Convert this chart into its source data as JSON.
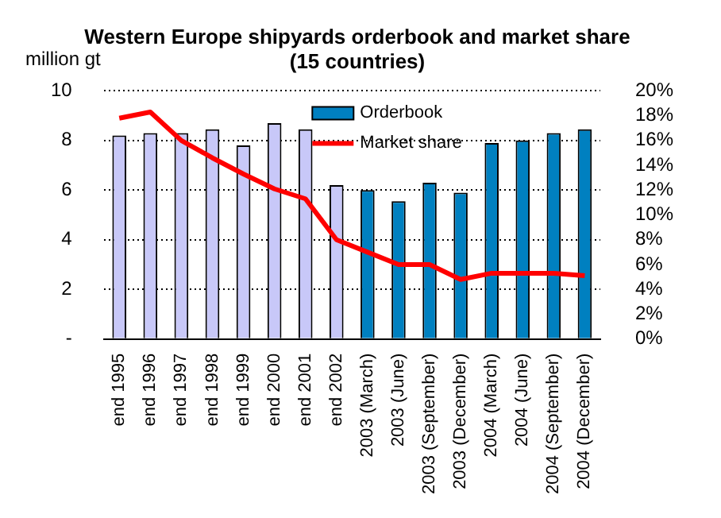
{
  "chart_data": {
    "type": "bar",
    "title": "Western Europe shipyards orderbook and market share",
    "subtitle": "(15 countries)",
    "ylabel": "million gt",
    "categories": [
      "end 1995",
      "end 1996",
      "end 1997",
      "end 1998",
      "end 1999",
      "end 2000",
      "end 2001",
      "end 2002",
      "2003 (March)",
      "2003 (June)",
      "2003 (September)",
      "2003 (December)",
      "2004 (March)",
      "2004 (June)",
      "2004 (September)",
      "2004 (December)"
    ],
    "series": [
      {
        "name": "Orderbook",
        "color": "#0080c0",
        "colors": [
          "#c8c8f8",
          "#c8c8f8",
          "#c8c8f8",
          "#c8c8f8",
          "#c8c8f8",
          "#c8c8f8",
          "#c8c8f8",
          "#c8c8f8",
          "#0080c0",
          "#0080c0",
          "#0080c0",
          "#0080c0",
          "#0080c0",
          "#0080c0",
          "#0080c0",
          "#0080c0"
        ],
        "values": [
          8.2,
          8.3,
          8.3,
          8.45,
          7.8,
          8.7,
          8.45,
          6.2,
          6.0,
          5.55,
          6.3,
          5.9,
          7.9,
          8.0,
          8.3,
          8.45
        ]
      },
      {
        "name": "Market share",
        "type": "line",
        "axis": "y2",
        "color": "#ff0000",
        "marker": "none",
        "values": [
          17.8,
          18.3,
          16.0,
          14.6,
          13.3,
          12.1,
          11.3,
          8.0,
          7.0,
          6.0,
          6.0,
          4.8,
          5.3,
          5.3,
          5.3,
          5.1
        ]
      }
    ],
    "ylim": [
      0,
      10
    ],
    "yticks": [
      {
        "value": 0,
        "label": "-"
      },
      2,
      4,
      6,
      8,
      10
    ],
    "y2lim": [
      0,
      20
    ],
    "y2ticks": [
      {
        "value": 0,
        "label": "0%"
      },
      {
        "value": 2,
        "label": "2%"
      },
      {
        "value": 4,
        "label": "4%"
      },
      {
        "value": 6,
        "label": "6%"
      },
      {
        "value": 8,
        "label": "8%"
      },
      {
        "value": 10,
        "label": "10%"
      },
      {
        "value": 12,
        "label": "12%"
      },
      {
        "value": 14,
        "label": "14%"
      },
      {
        "value": 16,
        "label": "16%"
      },
      {
        "value": 18,
        "label": "18%"
      },
      {
        "value": 20,
        "label": "20%"
      }
    ],
    "grid": "y",
    "legend": "top"
  }
}
